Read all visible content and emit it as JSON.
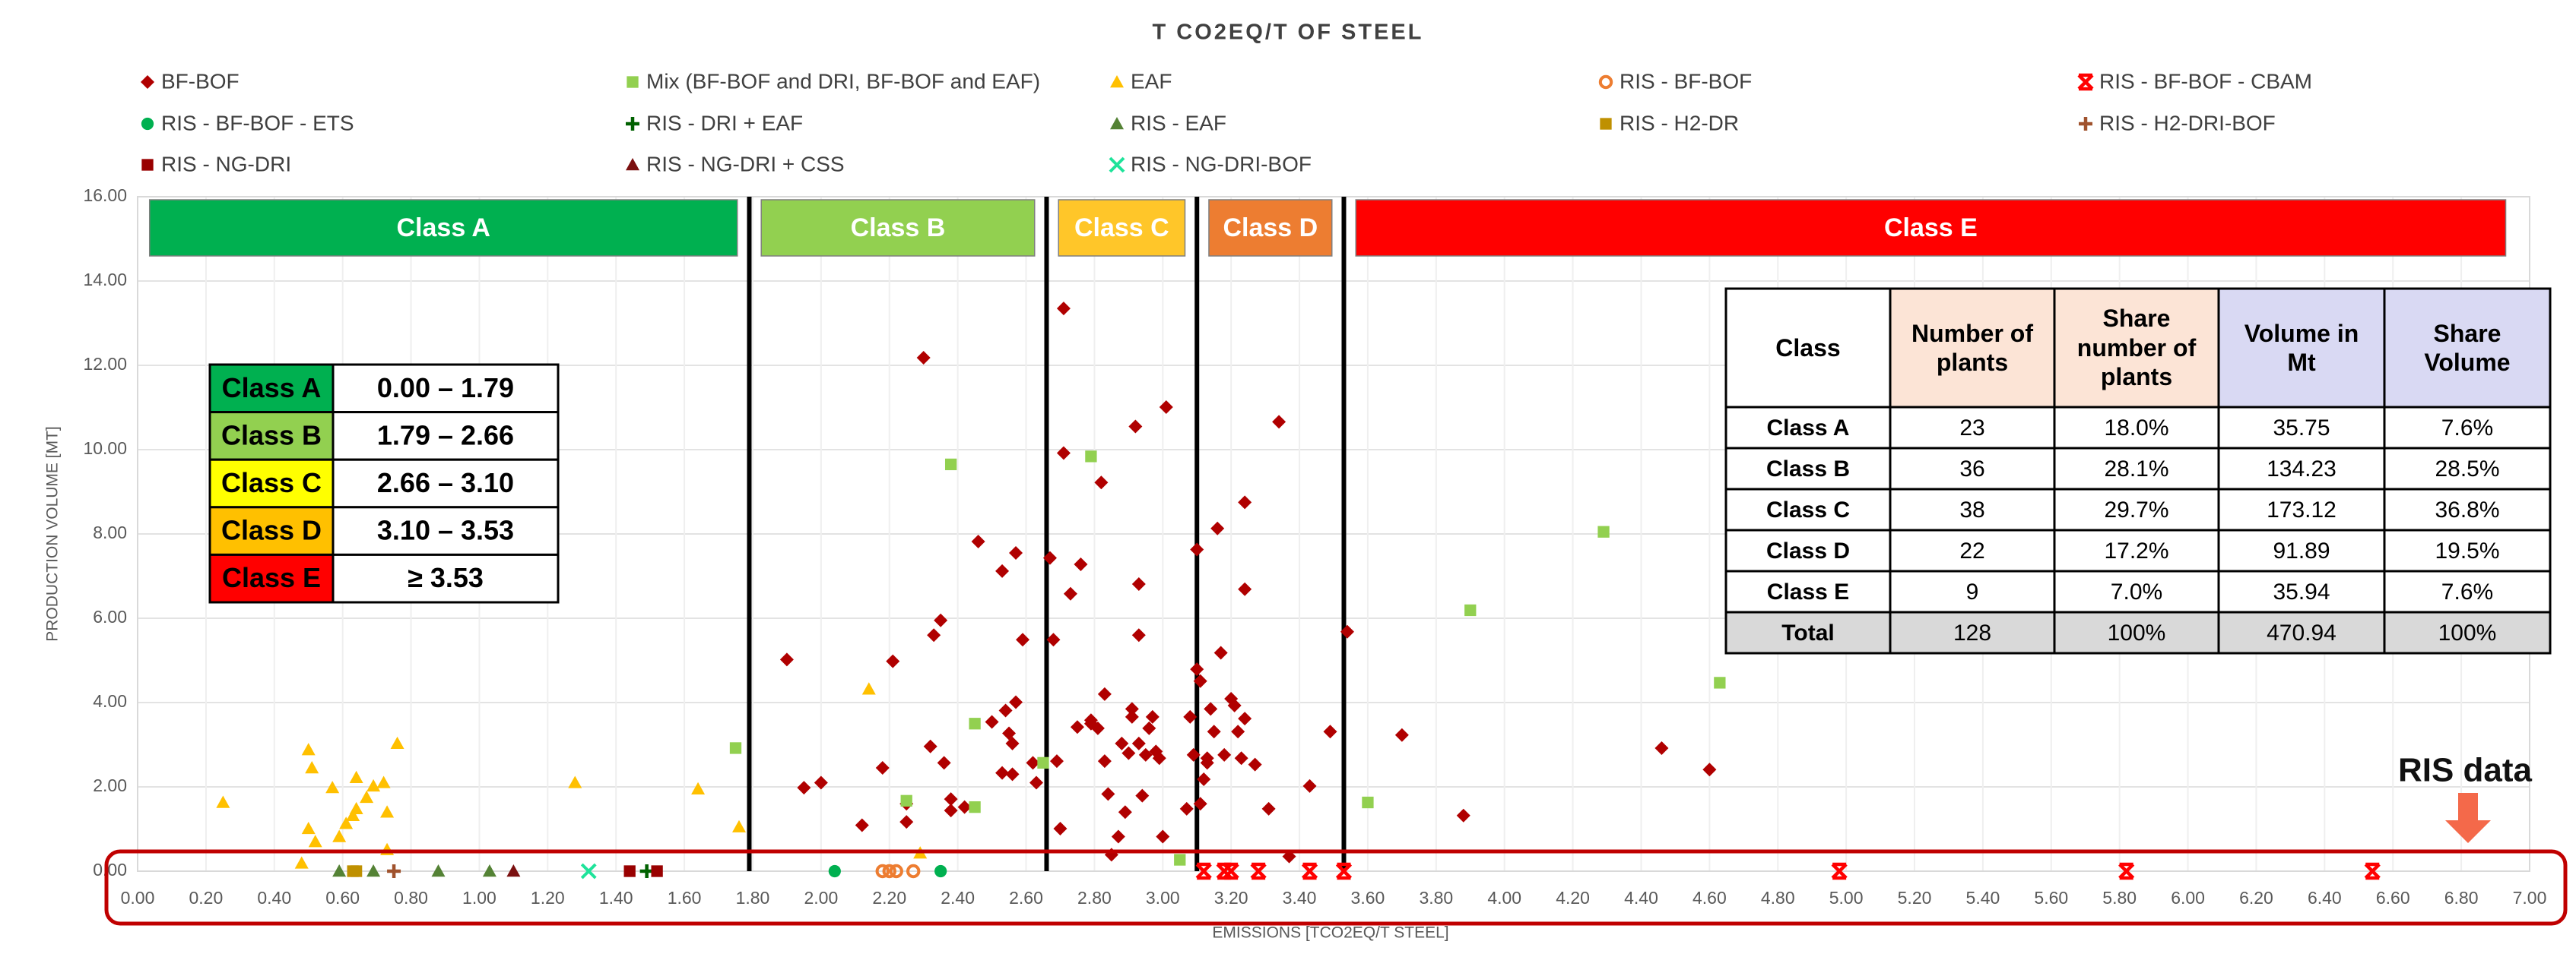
{
  "chart_data": {
    "type": "scatter",
    "title": "T CO2EQ/T OF STEEL",
    "x_label": "EMISSIONS [TCO2EQ/T STEEL]",
    "y_label": "PRODUCTION VOLUME [MT]",
    "xlim": [
      0,
      7
    ],
    "ylim": [
      0,
      16
    ],
    "xticks": [
      {
        "value": 0,
        "label": "0.00"
      },
      {
        "value": 0.2,
        "label": "0.20"
      },
      {
        "value": 0.4,
        "label": "0.40"
      },
      {
        "value": 0.6,
        "label": "0.60"
      },
      {
        "value": 0.8,
        "label": "0.80"
      },
      {
        "value": 1,
        "label": "1.00"
      },
      {
        "value": 1.2,
        "label": "1.20"
      },
      {
        "value": 1.4,
        "label": "1.40"
      },
      {
        "value": 1.6,
        "label": "1.60"
      },
      {
        "value": 1.8,
        "label": "1.80"
      },
      {
        "value": 2,
        "label": "2.00"
      },
      {
        "value": 2.2,
        "label": "2.20"
      },
      {
        "value": 2.4,
        "label": "2.40"
      },
      {
        "value": 2.6,
        "label": "2.60"
      },
      {
        "value": 2.8,
        "label": "2.80"
      },
      {
        "value": 3,
        "label": "3.00"
      },
      {
        "value": 3.2,
        "label": "3.20"
      },
      {
        "value": 3.4,
        "label": "3.40"
      },
      {
        "value": 3.6,
        "label": "3.60"
      },
      {
        "value": 3.8,
        "label": "3.80"
      },
      {
        "value": 4,
        "label": "4.00"
      },
      {
        "value": 4.2,
        "label": "4.20"
      },
      {
        "value": 4.4,
        "label": "4.40"
      },
      {
        "value": 4.6,
        "label": "4.60"
      },
      {
        "value": 4.8,
        "label": "4.80"
      },
      {
        "value": 5,
        "label": "5.00"
      },
      {
        "value": 5.2,
        "label": "5.20"
      },
      {
        "value": 5.4,
        "label": "5.40"
      },
      {
        "value": 5.6,
        "label": "5.60"
      },
      {
        "value": 5.8,
        "label": "5.80"
      },
      {
        "value": 6,
        "label": "6.00"
      },
      {
        "value": 6.2,
        "label": "6.20"
      },
      {
        "value": 6.4,
        "label": "6.40"
      },
      {
        "value": 6.6,
        "label": "6.60"
      },
      {
        "value": 6.8,
        "label": "6.80"
      },
      {
        "value": 7,
        "label": "7.00"
      }
    ],
    "yticks": [
      {
        "value": 0,
        "label": "0.00"
      },
      {
        "value": 2,
        "label": "2.00"
      },
      {
        "value": 4,
        "label": "4.00"
      },
      {
        "value": 6,
        "label": "6.00"
      },
      {
        "value": 8,
        "label": "8.00"
      },
      {
        "value": 10,
        "label": "10.00"
      },
      {
        "value": 12,
        "label": "12.00"
      },
      {
        "value": 14,
        "label": "14.00"
      },
      {
        "value": 16,
        "label": "16.00"
      }
    ],
    "grid": true,
    "class_labels": [
      "Class A",
      "Class B",
      "Class C",
      "Class D",
      "Class E"
    ],
    "class_colors": [
      "#00b050",
      "#92d050",
      "#ffc629",
      "#ed7d31",
      "#ff0000"
    ],
    "class_boundaries": [
      1.79,
      2.66,
      3.1,
      3.53
    ],
    "annotation": "RIS data",
    "series": [
      {
        "name": "BF-BOF",
        "color": "#b00000",
        "marker": "diamond",
        "x": [
          1.9,
          1.95,
          2.0,
          2.12,
          2.18,
          2.21,
          2.3,
          2.32,
          2.33,
          2.35,
          2.36,
          2.25,
          2.25,
          2.38,
          2.38,
          2.42,
          2.46,
          2.5,
          2.53,
          2.53,
          2.54,
          2.55,
          2.56,
          2.57,
          2.57,
          2.56,
          2.59,
          2.63,
          2.62,
          2.67,
          2.68,
          2.7,
          2.69,
          2.71,
          2.71,
          2.73,
          2.75,
          2.76,
          2.79,
          2.79,
          2.81,
          2.82,
          2.83,
          2.83,
          2.84,
          2.85,
          2.87,
          2.88,
          2.89,
          2.9,
          2.91,
          2.91,
          2.92,
          2.93,
          2.93,
          2.93,
          2.94,
          2.95,
          2.96,
          2.97,
          2.98,
          2.99,
          3.0,
          3.01,
          3.07,
          3.08,
          3.09,
          3.1,
          3.1,
          3.11,
          3.11,
          3.12,
          3.13,
          3.13,
          3.14,
          3.15,
          3.16,
          3.17,
          3.18,
          3.2,
          3.21,
          3.22,
          3.23,
          3.24,
          3.24,
          3.24,
          3.27,
          3.31,
          3.34,
          3.37,
          3.43,
          3.49,
          3.54,
          3.7,
          3.88,
          4.46,
          4.6
        ],
        "values": [
          5.02,
          1.98,
          2.1,
          1.09,
          2.45,
          4.98,
          12.18,
          2.96,
          5.6,
          5.95,
          2.57,
          1.6,
          1.17,
          1.71,
          1.44,
          1.52,
          7.82,
          3.54,
          2.33,
          7.12,
          3.81,
          3.27,
          3.03,
          7.55,
          4.01,
          2.3,
          5.49,
          2.1,
          2.57,
          7.43,
          5.49,
          1.01,
          2.61,
          13.35,
          9.92,
          6.58,
          3.42,
          7.28,
          3.5,
          3.58,
          3.39,
          9.22,
          2.61,
          4.2,
          1.83,
          0.39,
          0.82,
          3.03,
          1.4,
          2.8,
          3.66,
          3.85,
          10.55,
          6.81,
          5.6,
          3.03,
          1.79,
          2.76,
          3.39,
          3.66,
          2.84,
          2.68,
          0.82,
          11.01,
          1.48,
          3.66,
          2.76,
          7.63,
          4.79,
          4.51,
          1.6,
          2.18,
          2.68,
          2.57,
          3.85,
          3.31,
          8.13,
          5.18,
          2.76,
          4.09,
          3.93,
          3.31,
          2.68,
          6.69,
          8.75,
          3.62,
          2.53,
          1.48,
          10.66,
          0.35,
          2.02,
          3.31,
          5.68,
          3.23,
          1.32,
          2.92,
          2.41
        ]
      },
      {
        "name": "Mix (BF-BOF and DRI, BF-BOF and EAF)",
        "color": "#92d050",
        "marker": "square",
        "x": [
          1.75,
          2.25,
          2.38,
          2.45,
          2.45,
          2.65,
          2.79,
          3.05,
          3.6,
          3.9,
          4.29,
          4.63
        ],
        "values": [
          2.92,
          1.67,
          9.65,
          3.5,
          1.52,
          2.57,
          9.84,
          0.27,
          1.63,
          6.19,
          8.05,
          4.47
        ]
      },
      {
        "name": "EAF",
        "color": "#ffc000",
        "marker": "triangle",
        "x": [
          0.25,
          0.5,
          0.51,
          0.48,
          0.5,
          0.52,
          0.57,
          0.59,
          0.63,
          0.64,
          0.64,
          0.67,
          0.69,
          0.72,
          0.73,
          0.73,
          0.76,
          1.28,
          1.64,
          1.76,
          2.14,
          2.29,
          0.61
        ],
        "values": [
          1.63,
          2.88,
          2.45,
          0.19,
          1.01,
          0.7,
          1.98,
          0.82,
          1.32,
          1.48,
          2.22,
          1.75,
          2.02,
          2.1,
          1.4,
          0.51,
          3.03,
          2.1,
          1.95,
          1.05,
          4.32,
          0.43,
          1.13
        ]
      },
      {
        "name": "RIS - BF-BOF",
        "color": "#ed7d31",
        "marker": "circle-open",
        "x": [
          2.18,
          2.2,
          2.22,
          2.27
        ],
        "values": [
          0,
          0,
          0,
          0
        ]
      },
      {
        "name": "RIS - BF-BOF - CBAM",
        "color": "#ff0000",
        "marker": "star-x",
        "x": [
          3.12,
          3.18,
          3.2,
          3.28,
          3.43,
          3.53,
          4.98,
          5.82,
          6.54
        ],
        "values": [
          0,
          0,
          0,
          0,
          0,
          0,
          0,
          0,
          0
        ]
      },
      {
        "name": "RIS - BF-BOF - ETS",
        "color": "#00b050",
        "marker": "circle",
        "x": [
          2.04,
          2.35
        ],
        "values": [
          0,
          0
        ]
      },
      {
        "name": "RIS - DRI + EAF",
        "color": "#006100",
        "marker": "plus",
        "x": [
          1.49
        ],
        "values": [
          0
        ]
      },
      {
        "name": "RIS - EAF",
        "color": "#548235",
        "marker": "triangle",
        "x": [
          0.59,
          0.69,
          0.88,
          1.03
        ],
        "values": [
          0,
          0,
          0,
          0
        ]
      },
      {
        "name": "RIS - H2-DR",
        "color": "#bf9000",
        "marker": "square",
        "x": [
          0.63,
          0.64
        ],
        "values": [
          0,
          0
        ]
      },
      {
        "name": "RIS - H2-DRI-BOF",
        "color": "#a0522d",
        "marker": "plus",
        "x": [
          0.75
        ],
        "values": [
          0
        ]
      },
      {
        "name": "RIS - NG-DRI",
        "color": "#990000",
        "marker": "square",
        "x": [
          1.44,
          1.52
        ],
        "values": [
          0,
          0
        ]
      },
      {
        "name": "RIS - NG-DRI + CSS",
        "color": "#7b1010",
        "marker": "triangle",
        "x": [
          1.1
        ],
        "values": [
          0
        ]
      },
      {
        "name": "RIS - NG-DRI-BOF",
        "color": "#1ee39a",
        "marker": "x",
        "x": [
          1.32
        ],
        "values": [
          0
        ]
      }
    ]
  },
  "class_legend": {
    "colors": [
      "#00b050",
      "#92d050",
      "#ffff00",
      "#ffc000",
      "#ff0000"
    ],
    "rows": [
      [
        "Class A",
        "0.00 – 1.79"
      ],
      [
        "Class B",
        "1.79 – 2.66"
      ],
      [
        "Class C",
        "2.66 – 3.10"
      ],
      [
        "Class D",
        "3.10 – 3.53"
      ],
      [
        "Class E",
        "≥ 3.53"
      ]
    ]
  },
  "summary_table": {
    "header": [
      "Class",
      "Number of plants",
      "Share number of plants",
      "Volume in Mt",
      "Share Volume"
    ],
    "rows": [
      [
        "Class A",
        "23",
        "18.0%",
        "35.75",
        "7.6%"
      ],
      [
        "Class B",
        "36",
        "28.1%",
        "134.23",
        "28.5%"
      ],
      [
        "Class C",
        "38",
        "29.7%",
        "173.12",
        "36.8%"
      ],
      [
        "Class D",
        "22",
        "17.2%",
        "91.89",
        "19.5%"
      ],
      [
        "Class E",
        "9",
        "7.0%",
        "35.94",
        "7.6%"
      ],
      [
        "Total",
        "128",
        "100%",
        "470.94",
        "100%"
      ]
    ]
  }
}
